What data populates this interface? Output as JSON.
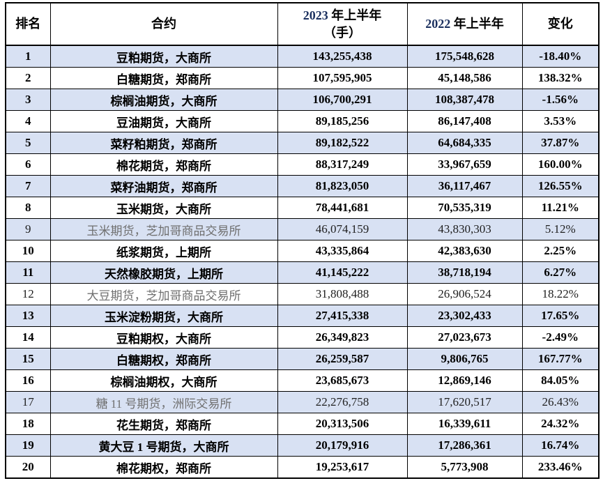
{
  "table": {
    "title_semantic": "agricultural-futures-volume-ranking",
    "headers": {
      "rank": "排名",
      "contract": "合约",
      "h1_2023": {
        "year": "2023",
        "suffix": " 年上半年",
        "unit_line": "（手）"
      },
      "h1_2022": {
        "year": "2022",
        "suffix": " 年上半年"
      },
      "change": "变化"
    },
    "rows": [
      {
        "rank": "1",
        "contract": "豆粕期货，大商所",
        "h1_2023": "143,255,438",
        "h1_2022": "175,548,628",
        "change": "-18.40%",
        "foreign": false
      },
      {
        "rank": "2",
        "contract": "白糖期货，郑商所",
        "h1_2023": "107,595,905",
        "h1_2022": "45,148,586",
        "change": "138.32%",
        "foreign": false
      },
      {
        "rank": "3",
        "contract": "棕榈油期货，大商所",
        "h1_2023": "106,700,291",
        "h1_2022": "108,387,478",
        "change": "-1.56%",
        "foreign": false
      },
      {
        "rank": "4",
        "contract": "豆油期货，大商所",
        "h1_2023": "89,185,256",
        "h1_2022": "86,147,408",
        "change": "3.53%",
        "foreign": false
      },
      {
        "rank": "5",
        "contract": "菜籽粕期货，郑商所",
        "h1_2023": "89,182,522",
        "h1_2022": "64,684,335",
        "change": "37.87%",
        "foreign": false
      },
      {
        "rank": "6",
        "contract": "棉花期货，郑商所",
        "h1_2023": "88,317,249",
        "h1_2022": "33,967,659",
        "change": "160.00%",
        "foreign": false
      },
      {
        "rank": "7",
        "contract": "菜籽油期货，郑商所",
        "h1_2023": "81,823,050",
        "h1_2022": "36,117,467",
        "change": "126.55%",
        "foreign": false
      },
      {
        "rank": "8",
        "contract": "玉米期货，大商所",
        "h1_2023": "78,441,681",
        "h1_2022": "70,535,319",
        "change": "11.21%",
        "foreign": false
      },
      {
        "rank": "9",
        "contract": "玉米期货，芝加哥商品交易所",
        "h1_2023": "46,074,159",
        "h1_2022": "43,830,303",
        "change": "5.12%",
        "foreign": true
      },
      {
        "rank": "10",
        "contract": "纸浆期货，上期所",
        "h1_2023": "43,335,864",
        "h1_2022": "42,383,630",
        "change": "2.25%",
        "foreign": false
      },
      {
        "rank": "11",
        "contract": "天然橡胶期货，上期所",
        "h1_2023": "41,145,222",
        "h1_2022": "38,718,194",
        "change": "6.27%",
        "foreign": false
      },
      {
        "rank": "12",
        "contract": "大豆期货，芝加哥商品交易所",
        "h1_2023": "31,808,488",
        "h1_2022": "26,906,524",
        "change": "18.22%",
        "foreign": true
      },
      {
        "rank": "13",
        "contract": "玉米淀粉期货，大商所",
        "h1_2023": "27,415,338",
        "h1_2022": "23,302,433",
        "change": "17.65%",
        "foreign": false
      },
      {
        "rank": "14",
        "contract": "豆粕期权，大商所",
        "h1_2023": "26,349,823",
        "h1_2022": "27,023,673",
        "change": "-2.49%",
        "foreign": false
      },
      {
        "rank": "15",
        "contract": "白糖期权，郑商所",
        "h1_2023": "26,259,587",
        "h1_2022": "9,806,765",
        "change": "167.77%",
        "foreign": false
      },
      {
        "rank": "16",
        "contract": "棕榈油期权，大商所",
        "h1_2023": "23,685,673",
        "h1_2022": "12,869,146",
        "change": "84.05%",
        "foreign": false
      },
      {
        "rank": "17",
        "contract": "糖 11 号期货，洲际交易所",
        "h1_2023": "22,276,758",
        "h1_2022": "17,620,517",
        "change": "26.43%",
        "foreign": true
      },
      {
        "rank": "18",
        "contract": "花生期货，郑商所",
        "h1_2023": "20,313,506",
        "h1_2022": "16,339,611",
        "change": "24.32%",
        "foreign": false
      },
      {
        "rank": "19",
        "contract": "黄大豆 1 号期货，大商所",
        "h1_2023": "20,179,916",
        "h1_2022": "17,286,361",
        "change": "16.74%",
        "foreign": false
      },
      {
        "rank": "20",
        "contract": "棉花期权，郑商所",
        "h1_2023": "19,253,617",
        "h1_2022": "5,773,908",
        "change": "233.46%",
        "foreign": false
      }
    ]
  },
  "colors": {
    "alt_row_background": "#D8E1F3",
    "border": "#000000",
    "text": "#000000",
    "header_year_digits": "#1A2F5E",
    "foreign_contract_text": "#6F6F6F"
  }
}
